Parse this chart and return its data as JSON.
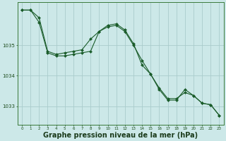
{
  "background_color": "#cce8e8",
  "grid_color": "#aacccc",
  "line_color": "#1a5c2a",
  "marker_color": "#1a5c2a",
  "xlabel": "Graphe pression niveau de la mer (hPa)",
  "xlabel_fontsize": 7,
  "x_ticks": [
    0,
    1,
    2,
    3,
    4,
    5,
    6,
    7,
    8,
    9,
    10,
    11,
    12,
    13,
    14,
    15,
    16,
    17,
    18,
    19,
    20,
    21,
    22,
    23
  ],
  "ylim": [
    1032.4,
    1036.4
  ],
  "y_ticks": [
    1033,
    1034,
    1035
  ],
  "series1_x": [
    0,
    1,
    2,
    3,
    4,
    5,
    6,
    7,
    8,
    9,
    10,
    11,
    12,
    13,
    14,
    15,
    16,
    17,
    18,
    19,
    20,
    21,
    22,
    23
  ],
  "series1_y": [
    1036.15,
    1036.15,
    1035.9,
    1034.8,
    1034.7,
    1034.75,
    1034.8,
    1034.85,
    1035.2,
    1035.45,
    1035.6,
    1035.65,
    1035.45,
    1035.0,
    1034.5,
    1034.05,
    1033.6,
    1033.25,
    1033.25,
    1033.45,
    1033.35,
    1033.1,
    1033.05,
    1032.7
  ],
  "series2_x": [
    0,
    1,
    2,
    3,
    4,
    5,
    6,
    7,
    8,
    9,
    10,
    11,
    12,
    13,
    14,
    15,
    16,
    17,
    18,
    19,
    20,
    21,
    22,
    23
  ],
  "series2_y": [
    1036.15,
    1036.15,
    1035.75,
    1034.75,
    1034.65,
    1034.65,
    1034.7,
    1034.75,
    1034.8,
    1035.45,
    1035.65,
    1035.7,
    1035.5,
    1035.05,
    1034.35,
    1034.05,
    1033.55,
    1033.2,
    1033.2,
    1033.55,
    1033.35,
    1033.1,
    1033.05,
    1032.7
  ]
}
